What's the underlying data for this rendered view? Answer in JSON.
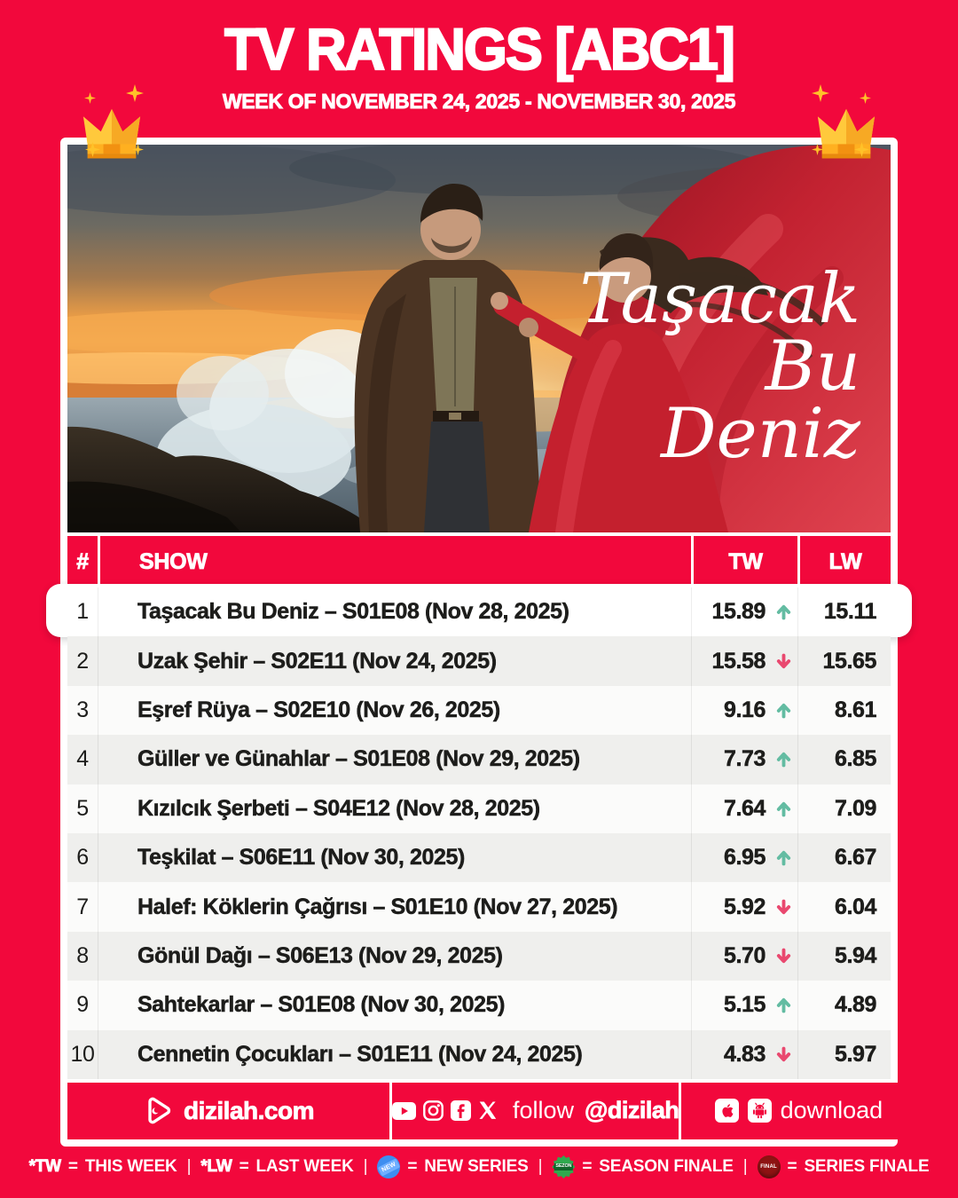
{
  "header": {
    "title": "TV RATINGS [ABC1]",
    "subtitle": "WEEK OF NOVEMBER 24, 2025 - NOVEMBER 30, 2025"
  },
  "hero": {
    "title_lines": [
      "Taşacak",
      "Bu",
      "Deniz"
    ]
  },
  "table": {
    "columns": {
      "rank": "#",
      "show": "SHOW",
      "tw": "TW",
      "lw": "LW"
    },
    "rows": [
      {
        "rank": "1",
        "show": "Taşacak Bu Deniz – S01E08 (Nov 28, 2025)",
        "tw": "15.89",
        "trend": "up",
        "lw": "15.11",
        "highlight": true
      },
      {
        "rank": "2",
        "show": "Uzak Şehir – S02E11 (Nov 24, 2025)",
        "tw": "15.58",
        "trend": "down",
        "lw": "15.65"
      },
      {
        "rank": "3",
        "show": "Eşref Rüya – S02E10 (Nov 26, 2025)",
        "tw": "9.16",
        "trend": "up",
        "lw": "8.61"
      },
      {
        "rank": "4",
        "show": "Güller ve Günahlar – S01E08 (Nov 29, 2025)",
        "tw": "7.73",
        "trend": "up",
        "lw": "6.85"
      },
      {
        "rank": "5",
        "show": "Kızılcık Şerbeti – S04E12 (Nov 28, 2025)",
        "tw": "7.64",
        "trend": "up",
        "lw": "7.09"
      },
      {
        "rank": "6",
        "show": "Teşkilat – S06E11 (Nov 30, 2025)",
        "tw": "6.95",
        "trend": "up",
        "lw": "6.67"
      },
      {
        "rank": "7",
        "show": "Halef: Köklerin Çağrısı – S01E10 (Nov 27, 2025)",
        "tw": "5.92",
        "trend": "down",
        "lw": "6.04"
      },
      {
        "rank": "8",
        "show": "Gönül Dağı – S06E13 (Nov 29, 2025)",
        "tw": "5.70",
        "trend": "down",
        "lw": "5.94"
      },
      {
        "rank": "9",
        "show": "Sahtekarlar – S01E08 (Nov 30, 2025)",
        "tw": "5.15",
        "trend": "up",
        "lw": "4.89"
      },
      {
        "rank": "10",
        "show": "Cennetin Çocukları – S01E11 (Nov 24, 2025)",
        "tw": "4.83",
        "trend": "down",
        "lw": "5.97"
      }
    ]
  },
  "footer": {
    "website": "dizilah.com",
    "follow_text": "follow",
    "follow_handle": "@dizilah",
    "download_label": "download"
  },
  "legend": {
    "tw_key": "*TW",
    "tw_val": "THIS WEEK",
    "lw_key": "*LW",
    "lw_val": "LAST WEEK",
    "eq": "=",
    "sep": "|",
    "new_badge_text": "NEW",
    "new_label": "NEW SERIES",
    "season_badge_text": "SEZON",
    "season_label": "SEASON FINALE",
    "series_badge_text": "FINAL",
    "series_label": "SERIES FINALE"
  },
  "colors": {
    "background_red": "#F2083C",
    "row_alt": "#EFEFED",
    "trend_up": "#63BCA2",
    "trend_down": "#E9486F",
    "crown_gold": "#FFC02E"
  },
  "chart_data": {
    "type": "table",
    "title": "TV RATINGS [ABC1]",
    "subtitle": "WEEK OF NOVEMBER 24, 2025 - NOVEMBER 30, 2025",
    "columns": [
      "#",
      "SHOW",
      "TW",
      "LW"
    ],
    "rows": [
      [
        1,
        "Taşacak Bu Deniz – S01E08 (Nov 28, 2025)",
        15.89,
        15.11
      ],
      [
        2,
        "Uzak Şehir – S02E11 (Nov 24, 2025)",
        15.58,
        15.65
      ],
      [
        3,
        "Eşref Rüya – S02E10 (Nov 26, 2025)",
        9.16,
        8.61
      ],
      [
        4,
        "Güller ve Günahlar – S01E08 (Nov 29, 2025)",
        7.73,
        6.85
      ],
      [
        5,
        "Kızılcık Şerbeti – S04E12 (Nov 28, 2025)",
        7.64,
        7.09
      ],
      [
        6,
        "Teşkilat – S06E11 (Nov 30, 2025)",
        6.95,
        6.67
      ],
      [
        7,
        "Halef: Köklerin Çağrısı – S01E10 (Nov 27, 2025)",
        5.92,
        6.04
      ],
      [
        8,
        "Gönül Dağı – S06E13 (Nov 29, 2025)",
        5.7,
        5.94
      ],
      [
        9,
        "Sahtekarlar – S01E08 (Nov 30, 2025)",
        5.15,
        4.89
      ],
      [
        10,
        "Cennetin Çocukları – S01E11 (Nov 24, 2025)",
        4.83,
        5.97
      ]
    ],
    "trend_vs_last_week": [
      "up",
      "down",
      "up",
      "up",
      "up",
      "up",
      "down",
      "down",
      "up",
      "down"
    ]
  }
}
